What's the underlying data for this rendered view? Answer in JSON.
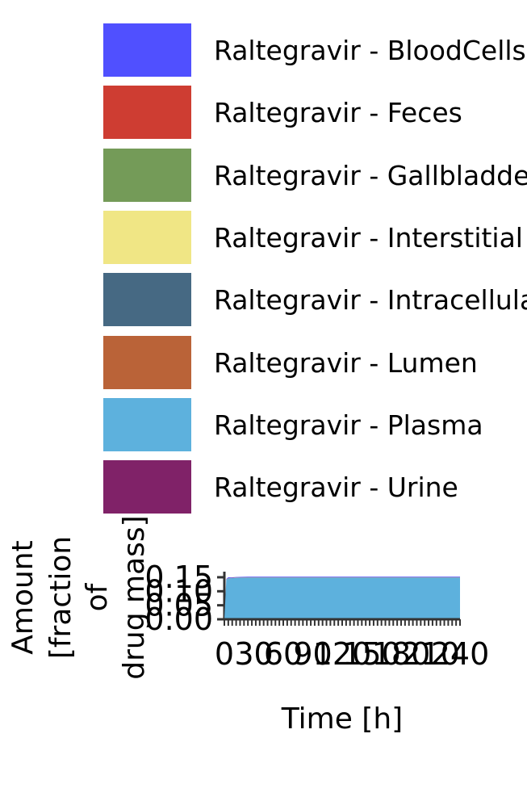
{
  "chart_data": {
    "type": "area",
    "stacked": true,
    "xlabel": "Time [h]",
    "ylabel_lines": [
      "Amount",
      "[fraction",
      "of",
      "drug mass]"
    ],
    "xlim": [
      0,
      240
    ],
    "ylim": [
      0,
      0.17
    ],
    "x_ticks": [
      "0",
      "30",
      "60",
      "90",
      "120",
      "150",
      "180",
      "210",
      "240"
    ],
    "y_ticks": [
      "0.00",
      "0.05",
      "0.10",
      "0.15"
    ],
    "y_tick_values": [
      0,
      0.05,
      0.1,
      0.15
    ],
    "legend_position": "top",
    "x": [
      0,
      2,
      4,
      8,
      12,
      24,
      48,
      72,
      96,
      120,
      144,
      168,
      192,
      216,
      240
    ],
    "series": [
      {
        "name": "Raltegravir - BloodCells",
        "color": "#5050FF",
        "values": [
          0.0,
          0.002,
          0.003,
          0.002,
          0.002,
          0.002,
          0.002,
          0.002,
          0.002,
          0.002,
          0.002,
          0.002,
          0.002,
          0.002,
          0.002
        ]
      },
      {
        "name": "Raltegravir - Feces",
        "color": "#CE3D32",
        "values": [
          0.0,
          0.0,
          0.0,
          0.0,
          0.0,
          0.0,
          0.0,
          0.0,
          0.0,
          0.0,
          0.0,
          0.0,
          0.0,
          0.0,
          0.0
        ]
      },
      {
        "name": "Raltegravir - Gallbladder",
        "color": "#749B58",
        "values": [
          0.0,
          0.0,
          0.0,
          0.0,
          0.0,
          0.0,
          0.0,
          0.0,
          0.0,
          0.0,
          0.0,
          0.0,
          0.0,
          0.0,
          0.0
        ]
      },
      {
        "name": "Raltegravir - Interstitial",
        "color": "#F0E685",
        "values": [
          0.0,
          0.0,
          0.0,
          0.0,
          0.0,
          0.0,
          0.0,
          0.0,
          0.0,
          0.0,
          0.0,
          0.0,
          0.0,
          0.0,
          0.0
        ]
      },
      {
        "name": "Raltegravir - Intracellular",
        "color": "#466983",
        "values": [
          0.0,
          0.0,
          0.0,
          0.0,
          0.0,
          0.0,
          0.0,
          0.0,
          0.0,
          0.0,
          0.0,
          0.0,
          0.0,
          0.0,
          0.0
        ]
      },
      {
        "name": "Raltegravir - Lumen",
        "color": "#BA6338",
        "values": [
          0.0,
          0.001,
          0.001,
          0.001,
          0.001,
          0.001,
          0.001,
          0.001,
          0.001,
          0.001,
          0.001,
          0.001,
          0.001,
          0.001,
          0.001
        ]
      },
      {
        "name": "Raltegravir - Plasma",
        "color": "#5DB1DD",
        "values": [
          0.0,
          0.14,
          0.145,
          0.146,
          0.147,
          0.148,
          0.148,
          0.148,
          0.148,
          0.148,
          0.148,
          0.148,
          0.148,
          0.148,
          0.148
        ]
      },
      {
        "name": "Raltegravir - Urine",
        "color": "#802268",
        "values": [
          0.0,
          0.001,
          0.001,
          0.001,
          0.001,
          0.001,
          0.001,
          0.001,
          0.001,
          0.001,
          0.001,
          0.001,
          0.001,
          0.001,
          0.001
        ]
      }
    ]
  }
}
